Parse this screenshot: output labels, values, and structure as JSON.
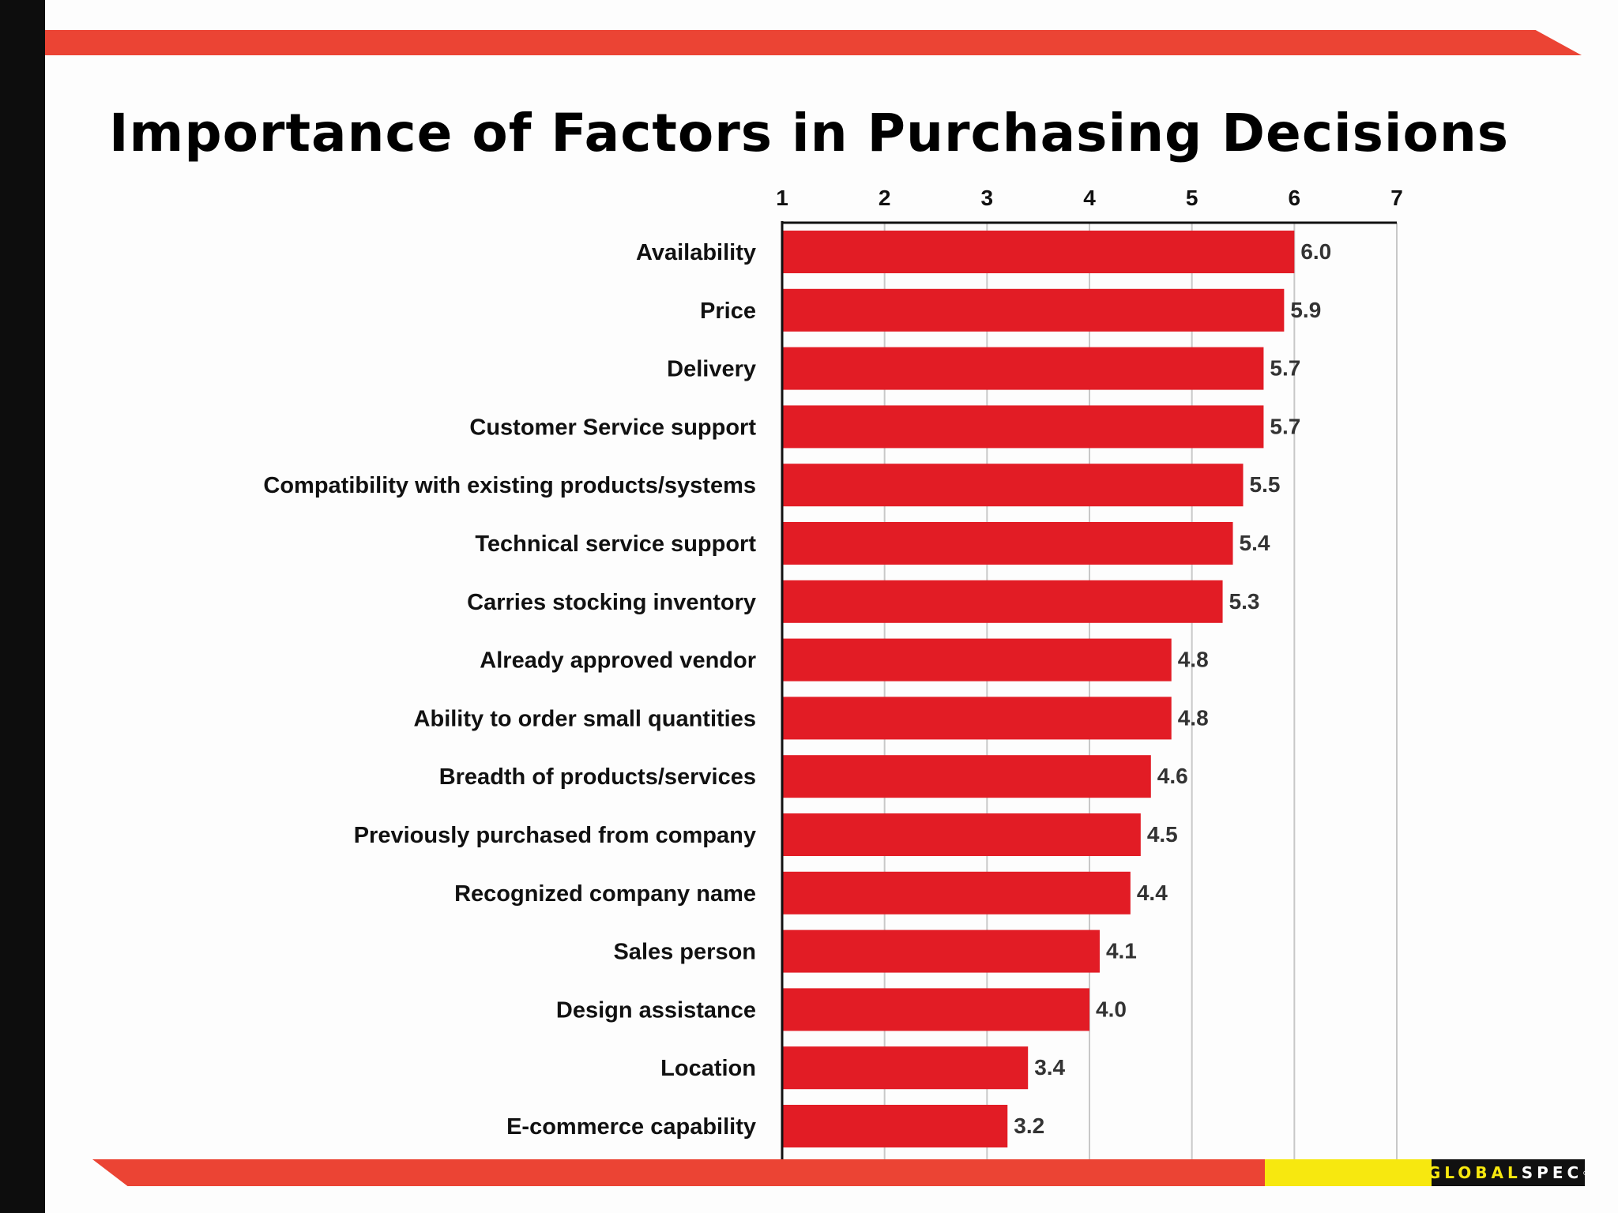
{
  "title": "Importance of Factors in Purchasing Decisions",
  "logo": {
    "part1": "GLOBAL",
    "part2": "SPEC",
    "mark": "®"
  },
  "colors": {
    "bar": "#e21c25",
    "stripe": "#eb4434",
    "accent": "#f7e80f"
  },
  "chart_data": {
    "type": "bar",
    "orientation": "horizontal",
    "title": "Importance of Factors in Purchasing Decisions",
    "xlim": [
      1,
      7
    ],
    "x_ticks": [
      "1",
      "2",
      "3",
      "4",
      "5",
      "6",
      "7"
    ],
    "grid": true,
    "categories": [
      "Availability",
      "Price",
      "Delivery",
      "Customer Service support",
      "Compatibility with existing products/systems",
      "Technical service support",
      "Carries stocking inventory",
      "Already approved vendor",
      "Ability to order small quantities",
      "Breadth of products/services",
      "Previously purchased from company",
      "Recognized company name",
      "Sales person",
      "Design assistance",
      "Location",
      "E-commerce capability"
    ],
    "values": [
      6.0,
      5.9,
      5.7,
      5.7,
      5.5,
      5.4,
      5.3,
      4.8,
      4.8,
      4.6,
      4.5,
      4.4,
      4.1,
      4.0,
      3.4,
      3.2
    ],
    "labels": [
      "6.0",
      "5.9",
      "5.7",
      "5.7",
      "5.5",
      "5.4",
      "5.3",
      "4.8",
      "4.8",
      "4.6",
      "4.5",
      "4.4",
      "4.1",
      "4.0",
      "3.4",
      "3.2"
    ]
  }
}
